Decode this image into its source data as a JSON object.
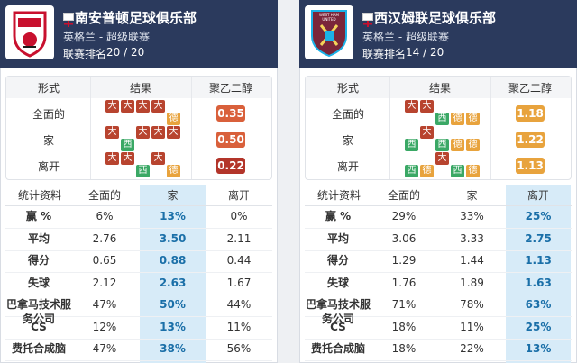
{
  "teams": [
    {
      "name": "南安普顿足球俱乐部",
      "league": "英格兰 - 超级联赛",
      "rank_label": "联赛排名",
      "rank": "20 / 20",
      "logo_text": null,
      "form_headers": [
        "形式",
        "结果",
        "聚乙二醇"
      ],
      "form_rows": [
        {
          "label": "全面的",
          "results": [
            "大",
            "大",
            "大",
            "大",
            "德"
          ],
          "ppg": "0.35",
          "ppg_color": "#d9603b"
        },
        {
          "label": "家",
          "results": [
            "大",
            "西",
            "大",
            "大",
            "大"
          ],
          "ppg": "0.50",
          "ppg_color": "#d9603b"
        },
        {
          "label": "离开",
          "results": [
            "大",
            "大",
            "西",
            "大",
            "德"
          ],
          "ppg": "0.22",
          "ppg_color": "#b3352a"
        }
      ],
      "stats_headers": [
        "统计资料",
        "全面的",
        "家",
        "离开"
      ],
      "highlight_column": 1,
      "stats_rows": [
        {
          "label": "赢 %",
          "values": [
            "6%",
            "13%",
            "0%"
          ]
        },
        {
          "label": "平均",
          "values": [
            "2.76",
            "3.50",
            "2.11"
          ]
        },
        {
          "label": "得分",
          "values": [
            "0.65",
            "0.88",
            "0.44"
          ]
        },
        {
          "label": "失球",
          "values": [
            "2.12",
            "2.63",
            "1.67"
          ]
        },
        {
          "label": "巴拿马技术服务公司",
          "values": [
            "47%",
            "50%",
            "44%"
          ]
        },
        {
          "label": "CS",
          "values": [
            "12%",
            "13%",
            "11%"
          ]
        },
        {
          "label": "费托合成脑",
          "values": [
            "47%",
            "38%",
            "56%"
          ]
        }
      ]
    },
    {
      "name": "西汉姆联足球俱乐部",
      "league": "英格兰 - 超级联赛",
      "rank_label": "联赛排名",
      "rank": "14 / 20",
      "logo_text": "WEST HAM UNITED",
      "form_headers": [
        "形式",
        "结果",
        "聚乙二醇"
      ],
      "form_rows": [
        {
          "label": "全面的",
          "results": [
            "大",
            "大",
            "西",
            "德",
            "德"
          ],
          "ppg": "1.18",
          "ppg_color": "#e8a33d"
        },
        {
          "label": "家",
          "results": [
            "西",
            "大",
            "西",
            "德",
            "德"
          ],
          "ppg": "1.22",
          "ppg_color": "#e8a33d"
        },
        {
          "label": "离开",
          "results": [
            "西",
            "德",
            "大",
            "西",
            "德"
          ],
          "ppg": "1.13",
          "ppg_color": "#e8a33d"
        }
      ],
      "stats_headers": [
        "统计资料",
        "全面的",
        "家",
        "离开"
      ],
      "highlight_column": 2,
      "stats_rows": [
        {
          "label": "赢 %",
          "values": [
            "29%",
            "33%",
            "25%"
          ]
        },
        {
          "label": "平均",
          "values": [
            "3.06",
            "3.33",
            "2.75"
          ]
        },
        {
          "label": "得分",
          "values": [
            "1.29",
            "1.44",
            "1.13"
          ]
        },
        {
          "label": "失球",
          "values": [
            "1.76",
            "1.89",
            "1.63"
          ]
        },
        {
          "label": "巴拿马技术服务公司",
          "values": [
            "71%",
            "78%",
            "63%"
          ]
        },
        {
          "label": "CS",
          "values": [
            "18%",
            "11%",
            "25%"
          ]
        },
        {
          "label": "费托合成脑",
          "values": [
            "18%",
            "22%",
            "13%"
          ]
        }
      ]
    }
  ]
}
